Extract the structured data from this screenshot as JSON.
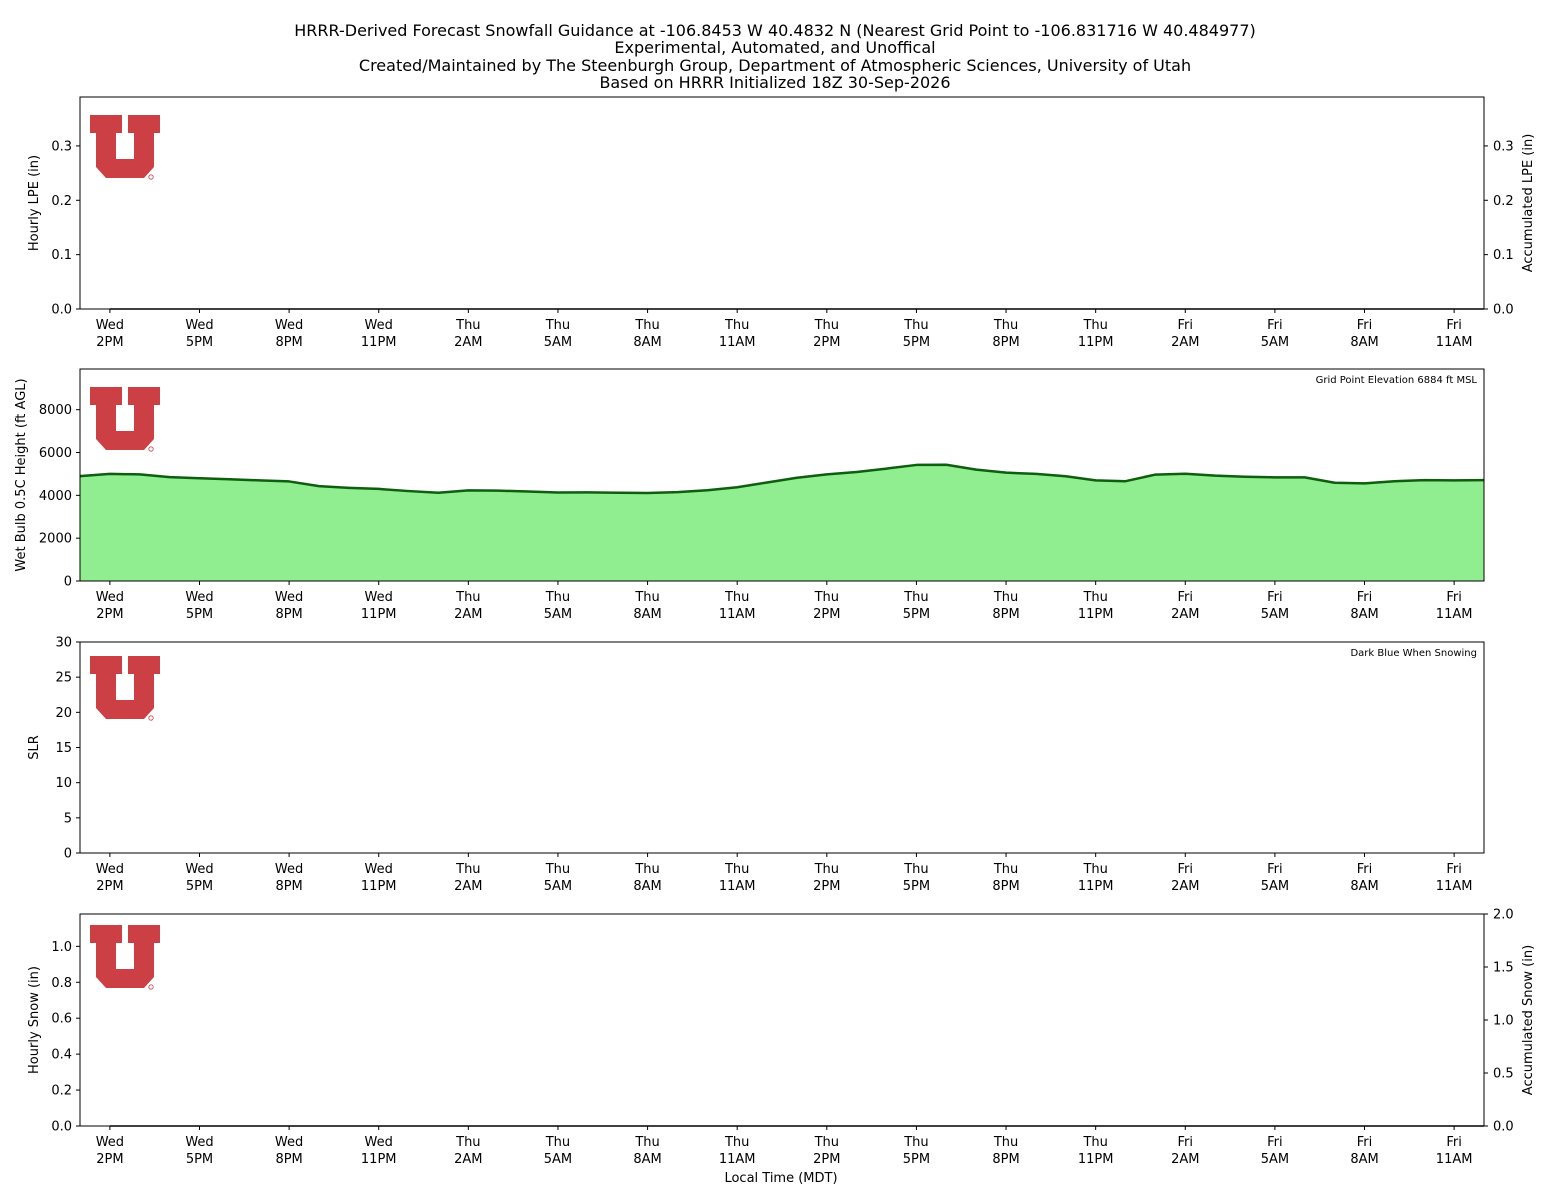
{
  "title_lines": [
    "HRRR-Derived Forecast Snowfall Guidance at -106.8453 W 40.4832 N (Nearest Grid Point to -106.831716 W 40.484977)",
    "Experimental, Automated, and Unoffical",
    "Created/Maintained by The Steenburgh Group, Department of Atmospheric Sciences, University of Utah",
    "Based on HRRR Initialized 18Z 30-Sep-2026"
  ],
  "colors": {
    "logo_red": "#cc3f44",
    "wetbulb_fill": "#90ee90",
    "wetbulb_line": "#0d5e0d",
    "snow_line": "#00008b"
  },
  "logo_icon": "university-of-utah-block-u-logo",
  "x_ticks": [
    {
      "day": "Wed",
      "time": "2PM"
    },
    {
      "day": "Wed",
      "time": "5PM"
    },
    {
      "day": "Wed",
      "time": "8PM"
    },
    {
      "day": "Wed",
      "time": "11PM"
    },
    {
      "day": "Thu",
      "time": "2AM"
    },
    {
      "day": "Thu",
      "time": "5AM"
    },
    {
      "day": "Thu",
      "time": "8AM"
    },
    {
      "day": "Thu",
      "time": "11AM"
    },
    {
      "day": "Thu",
      "time": "2PM"
    },
    {
      "day": "Thu",
      "time": "5PM"
    },
    {
      "day": "Thu",
      "time": "8PM"
    },
    {
      "day": "Thu",
      "time": "11PM"
    },
    {
      "day": "Fri",
      "time": "2AM"
    },
    {
      "day": "Fri",
      "time": "5AM"
    },
    {
      "day": "Fri",
      "time": "8AM"
    },
    {
      "day": "Fri",
      "time": "11AM"
    }
  ],
  "xlabel": "Local Time (MDT)",
  "chart_data": [
    {
      "id": "lpe",
      "type": "bar",
      "ylabel": "Hourly LPE (in)",
      "ylabel_right": "Accumulated LPE (in)",
      "ylim": [
        0,
        0.39
      ],
      "yticks": [
        0.0,
        0.1,
        0.2,
        0.3
      ],
      "ylim_right": [
        0,
        0.39
      ],
      "yticks_right": [
        0.0,
        0.1,
        0.2,
        0.3
      ],
      "xlim_hours": [
        -1,
        46
      ],
      "hours": [
        0,
        1,
        2,
        3,
        4,
        5,
        6,
        7,
        8,
        9,
        10,
        11,
        12,
        13,
        14,
        15,
        16,
        17,
        18,
        19,
        20,
        21,
        22,
        23,
        24,
        25,
        26,
        27,
        28,
        29,
        30,
        31,
        32,
        33,
        34,
        35,
        36,
        37,
        38,
        39,
        40,
        41,
        42,
        43,
        44,
        45,
        46
      ],
      "hourly": [
        0,
        0,
        0,
        0,
        0,
        0,
        0,
        0,
        0,
        0,
        0,
        0,
        0,
        0,
        0,
        0,
        0,
        0,
        0,
        0,
        0,
        0,
        0,
        0,
        0,
        0,
        0,
        0,
        0,
        0,
        0,
        0,
        0,
        0,
        0,
        0,
        0,
        0,
        0,
        0,
        0,
        0,
        0,
        0,
        0,
        0,
        0
      ],
      "accumulated": [
        0,
        0,
        0,
        0,
        0,
        0,
        0,
        0,
        0,
        0,
        0,
        0,
        0,
        0,
        0,
        0,
        0,
        0,
        0,
        0,
        0,
        0,
        0,
        0,
        0,
        0,
        0,
        0,
        0,
        0,
        0,
        0,
        0,
        0,
        0,
        0,
        0,
        0,
        0,
        0,
        0,
        0,
        0,
        0,
        0,
        0,
        0
      ]
    },
    {
      "id": "wetbulb",
      "type": "area",
      "ylabel": "Wet Bulb 0.5C Height (ft AGL)",
      "annotation": "Grid Point Elevation 6884 ft MSL",
      "ylim": [
        0,
        9900
      ],
      "yticks": [
        0,
        2000,
        4000,
        6000,
        8000
      ],
      "xlim_hours": [
        -1,
        46
      ],
      "hours": [
        -1,
        0,
        1,
        2,
        3,
        4,
        5,
        6,
        7,
        8,
        9,
        10,
        11,
        12,
        13,
        14,
        15,
        16,
        17,
        18,
        19,
        20,
        21,
        22,
        23,
        24,
        25,
        26,
        27,
        28,
        29,
        30,
        31,
        32,
        33,
        34,
        35,
        36,
        37,
        38,
        39,
        40,
        41,
        42,
        43,
        44,
        45,
        46
      ],
      "values": [
        4900,
        5000,
        4980,
        4850,
        4800,
        4750,
        4700,
        4650,
        4430,
        4350,
        4300,
        4200,
        4120,
        4230,
        4220,
        4180,
        4130,
        4140,
        4120,
        4110,
        4150,
        4240,
        4380,
        4600,
        4820,
        4980,
        5090,
        5250,
        5420,
        5430,
        5200,
        5060,
        5000,
        4890,
        4700,
        4660,
        4970,
        5010,
        4920,
        4870,
        4840,
        4840,
        4590,
        4560,
        4660,
        4710,
        4700,
        4710
      ]
    },
    {
      "id": "slr",
      "type": "line",
      "ylabel": "SLR",
      "annotation": "Dark Blue When Snowing",
      "ylim": [
        0,
        30
      ],
      "yticks": [
        0,
        5,
        10,
        15,
        20,
        25,
        30
      ],
      "xlim_hours": [
        -1,
        46
      ],
      "hours": [],
      "values": []
    },
    {
      "id": "snow",
      "type": "bar",
      "ylabel": "Hourly Snow (in)",
      "ylabel_right": "Accumulated Snow (in)",
      "ylim": [
        0,
        1.18
      ],
      "yticks": [
        0.0,
        0.2,
        0.4,
        0.6,
        0.8,
        1.0
      ],
      "ylim_right": [
        0,
        2.0
      ],
      "yticks_right": [
        0.0,
        0.5,
        1.0,
        1.5,
        2.0
      ],
      "xlim_hours": [
        -1,
        46
      ],
      "hours": [
        0,
        1,
        2,
        3,
        4,
        5,
        6,
        7,
        8,
        9,
        10,
        11,
        12,
        13,
        14,
        15,
        16,
        17,
        18,
        19,
        20,
        21,
        22,
        23,
        24,
        25,
        26,
        27,
        28,
        29,
        30,
        31,
        32,
        33,
        34,
        35,
        36,
        37,
        38,
        39,
        40,
        41,
        42,
        43,
        44,
        45,
        46
      ],
      "hourly": [
        0,
        0,
        0,
        0,
        0,
        0,
        0,
        0,
        0,
        0,
        0,
        0,
        0,
        0,
        0,
        0,
        0,
        0,
        0,
        0,
        0,
        0,
        0,
        0,
        0,
        0,
        0,
        0,
        0,
        0,
        0,
        0,
        0,
        0,
        0,
        0,
        0,
        0,
        0,
        0,
        0,
        0,
        0,
        0,
        0,
        0,
        0
      ],
      "accumulated": [
        0,
        0,
        0,
        0,
        0,
        0,
        0,
        0,
        0,
        0,
        0,
        0,
        0,
        0,
        0,
        0,
        0,
        0,
        0,
        0,
        0,
        0,
        0,
        0,
        0,
        0,
        0,
        0,
        0,
        0,
        0,
        0,
        0,
        0,
        0,
        0,
        0,
        0,
        0,
        0,
        0,
        0,
        0,
        0,
        0,
        0,
        0
      ]
    }
  ]
}
